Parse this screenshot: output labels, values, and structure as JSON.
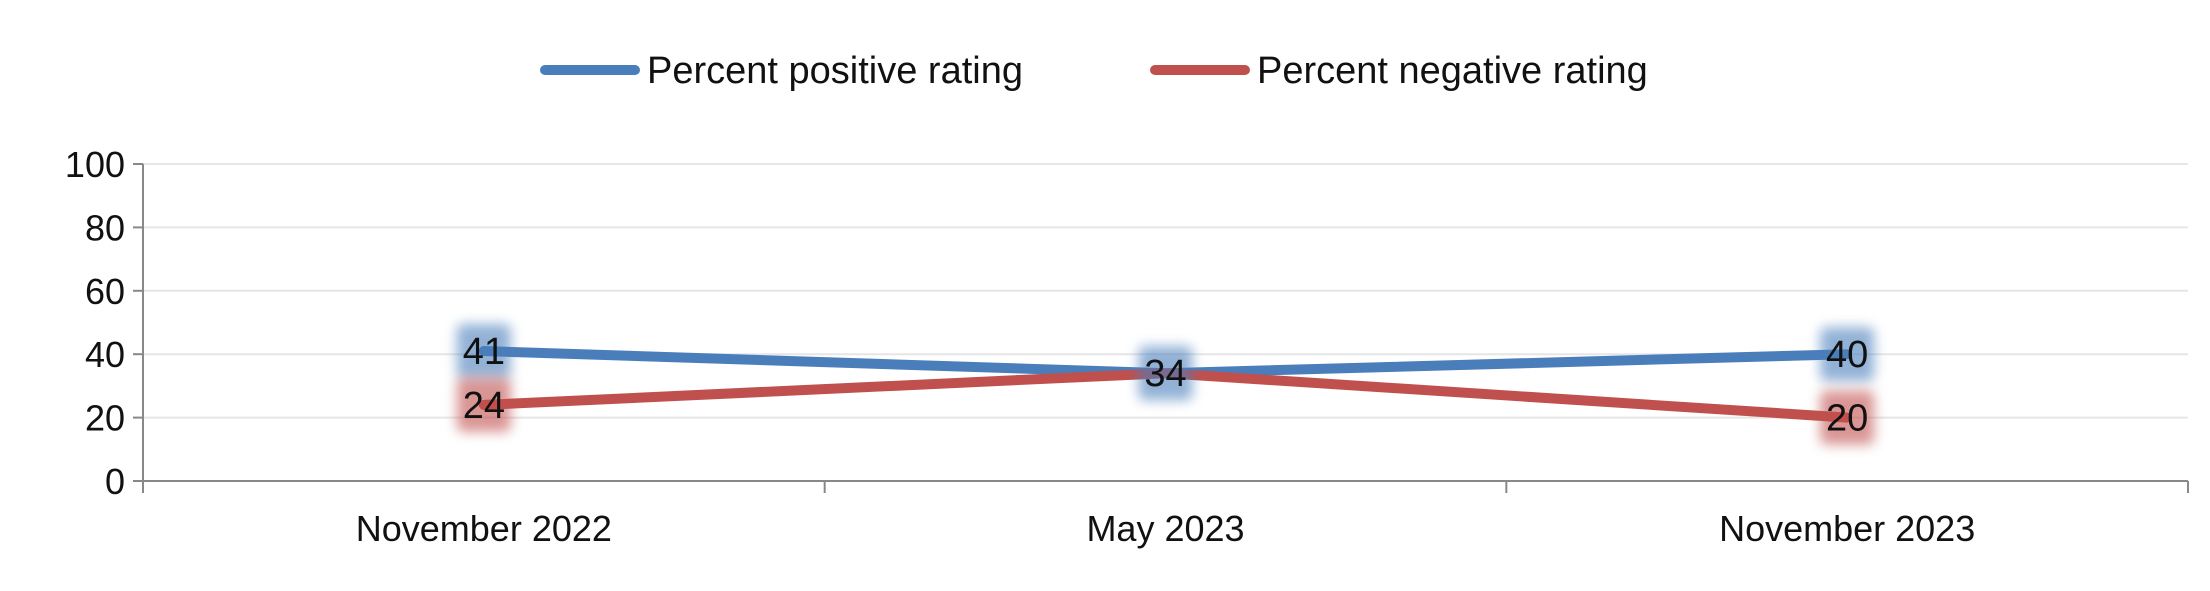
{
  "chart_data": {
    "type": "line",
    "categories": [
      "November 2022",
      "May 2023",
      "November 2023"
    ],
    "series": [
      {
        "name": "Percent positive rating",
        "values": [
          41,
          34,
          40
        ],
        "color": "#4a7ebb"
      },
      {
        "name": "Percent negative rating",
        "values": [
          24,
          34,
          20
        ],
        "color": "#c0504d"
      }
    ],
    "y_ticks": [
      "0",
      "20",
      "40",
      "60",
      "80",
      "100"
    ],
    "ylim": [
      0,
      100
    ],
    "xlabel": "",
    "ylabel": "",
    "grid": true,
    "legend_position": "top-center",
    "data_labels": [
      {
        "series": 0,
        "index": 0,
        "text": "41"
      },
      {
        "series": 1,
        "index": 0,
        "text": "24"
      },
      {
        "series": 0,
        "index": 1,
        "text": "34"
      },
      {
        "series": 0,
        "index": 2,
        "text": "40"
      },
      {
        "series": 1,
        "index": 2,
        "text": "20"
      }
    ]
  }
}
